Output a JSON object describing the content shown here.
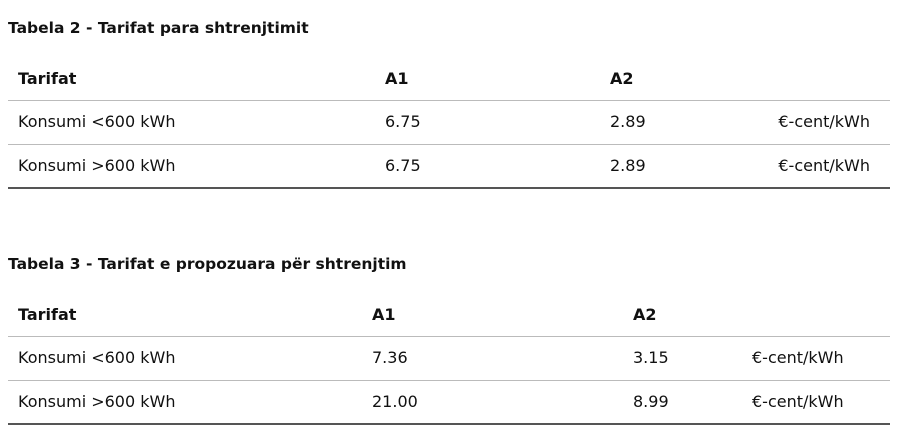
{
  "tables": [
    {
      "title": "Tabela 2 - Tarifat para shtrenjtimit",
      "headers": [
        "Tarifat",
        "A1",
        "A2"
      ],
      "rows": [
        [
          "Konsumi <600 kWh",
          "6.75",
          "2.89",
          "€-cent/kWh"
        ],
        [
          "Konsumi >600 kWh",
          "6.75",
          "2.89",
          "€-cent/kWh"
        ]
      ]
    },
    {
      "title": "Tabela 3 - Tarifat e propozuara për shtrenjtim",
      "headers": [
        "Tarifat",
        "A1",
        "A2"
      ],
      "rows": [
        [
          "Konsumi <600 kWh",
          "7.36",
          "3.15",
          "€-cent/kWh"
        ],
        [
          "Konsumi >600 kWh",
          "21.00",
          "8.99",
          "€-cent/kWh"
        ]
      ]
    }
  ]
}
